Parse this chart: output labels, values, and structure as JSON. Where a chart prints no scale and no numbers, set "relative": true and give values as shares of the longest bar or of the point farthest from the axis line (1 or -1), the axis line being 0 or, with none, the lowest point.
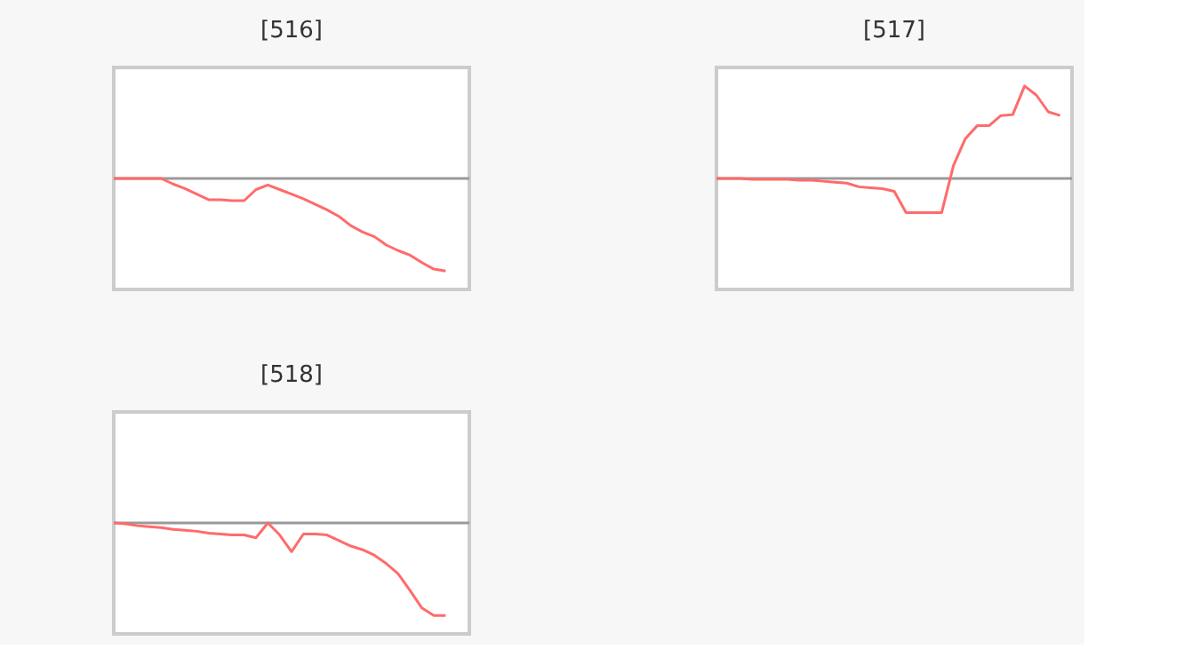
{
  "chart_data": [
    {
      "type": "line",
      "title": "[516]",
      "relative": true,
      "categories": [
        null,
        null,
        null,
        null,
        null,
        null,
        null,
        null,
        null,
        null,
        null,
        null,
        null,
        null,
        null,
        null,
        null,
        null,
        null,
        null,
        null,
        null,
        null,
        null,
        null,
        null,
        null,
        null,
        null,
        null,
        null
      ],
      "series": [
        {
          "color": "#ff6b6b",
          "values": [
            0,
            0,
            0,
            0,
            0,
            -0.06,
            -0.11,
            -0.17,
            -0.23,
            -0.23,
            -0.24,
            -0.24,
            -0.12,
            -0.07,
            -0.12,
            -0.17,
            -0.22,
            -0.28,
            -0.34,
            -0.41,
            -0.51,
            -0.58,
            -0.63,
            -0.72,
            -0.78,
            -0.83,
            -0.91,
            -0.98,
            -1,
            null,
            null
          ]
        }
      ]
    },
    {
      "type": "line",
      "title": "[517]",
      "relative": true,
      "categories": [
        null,
        null,
        null,
        null,
        null,
        null,
        null,
        null,
        null,
        null,
        null,
        null,
        null,
        null,
        null,
        null,
        null,
        null,
        null,
        null,
        null,
        null,
        null,
        null,
        null,
        null,
        null,
        null,
        null,
        null,
        null
      ],
      "series": [
        {
          "color": "#ff6b6b",
          "values": [
            0,
            0,
            0,
            -0.01,
            -0.01,
            -0.01,
            -0.01,
            -0.02,
            -0.02,
            -0.03,
            -0.04,
            -0.05,
            -0.09,
            -0.1,
            -0.11,
            -0.14,
            -0.37,
            -0.37,
            -0.37,
            -0.37,
            0.14,
            0.43,
            0.57,
            0.57,
            0.68,
            0.69,
            1,
            0.9,
            0.72,
            0.68,
            null
          ]
        }
      ]
    },
    {
      "type": "line",
      "title": "[518]",
      "relative": true,
      "categories": [
        null,
        null,
        null,
        null,
        null,
        null,
        null,
        null,
        null,
        null,
        null,
        null,
        null,
        null,
        null,
        null,
        null,
        null,
        null,
        null,
        null,
        null,
        null,
        null,
        null,
        null,
        null,
        null,
        null,
        null,
        null
      ],
      "series": [
        {
          "color": "#ff6b6b",
          "values": [
            0,
            -0.01,
            -0.03,
            -0.04,
            -0.05,
            -0.07,
            -0.08,
            -0.09,
            -0.11,
            -0.12,
            -0.13,
            -0.13,
            -0.16,
            0,
            -0.13,
            -0.31,
            -0.12,
            -0.12,
            -0.13,
            -0.19,
            -0.25,
            -0.29,
            -0.35,
            -0.44,
            -0.55,
            -0.73,
            -0.92,
            -1,
            -1,
            null,
            null
          ]
        }
      ]
    }
  ]
}
